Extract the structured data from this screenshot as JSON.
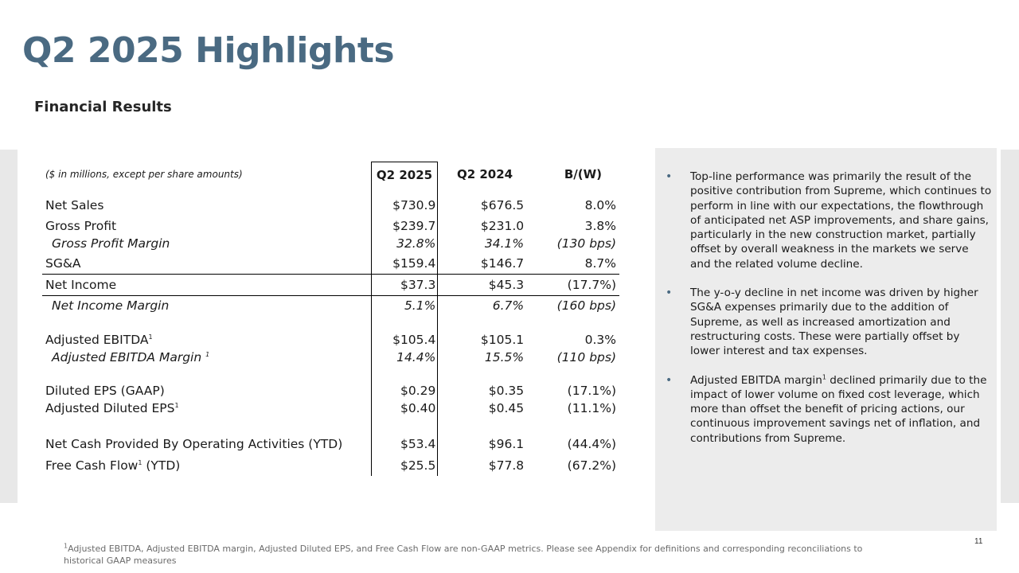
{
  "header": {
    "title": "Q2 2025 Highlights",
    "subtitle": "Financial Results"
  },
  "table": {
    "units_note": "($ in millions, except per share amounts)",
    "columns": [
      "Q2 2025",
      "Q2 2024",
      "B/(W)"
    ],
    "rows": [
      {
        "label": "Net Sales",
        "q2_2025": "$730.9",
        "q2_2024": "$676.5",
        "bw": "8.0%"
      },
      {
        "label": "Gross Profit",
        "q2_2025": "$239.7",
        "q2_2024": "$231.0",
        "bw": "3.8%"
      },
      {
        "label": "Gross Profit Margin",
        "q2_2025": "32.8%",
        "q2_2024": "34.1%",
        "bw": "(130 bps)"
      },
      {
        "label": "SG&A",
        "q2_2025": "$159.4",
        "q2_2024": "$146.7",
        "bw": "8.7%"
      },
      {
        "label": "Net Income",
        "q2_2025": "$37.3",
        "q2_2024": "$45.3",
        "bw": "(17.7%)"
      },
      {
        "label": "Net Income Margin",
        "q2_2025": "5.1%",
        "q2_2024": "6.7%",
        "bw": "(160 bps)"
      },
      {
        "label": "Adjusted EBITDA",
        "q2_2025": "$105.4",
        "q2_2024": "$105.1",
        "bw": "0.3%"
      },
      {
        "label": "Adjusted EBITDA Margin",
        "q2_2025": "14.4%",
        "q2_2024": "15.5%",
        "bw": "(110 bps)"
      },
      {
        "label": "Diluted EPS (GAAP)",
        "q2_2025": "$0.29",
        "q2_2024": "$0.35",
        "bw": "(17.1%)"
      },
      {
        "label": "Adjusted Diluted EPS",
        "q2_2025": "$0.40",
        "q2_2024": "$0.45",
        "bw": "(11.1%)"
      },
      {
        "label": "Net Cash Provided By Operating Activities (YTD)",
        "q2_2025": "$53.4",
        "q2_2024": "$96.1",
        "bw": "(44.4%)"
      },
      {
        "label": "Free Cash Flow",
        "label_suffix": " (YTD)",
        "q2_2025": "$25.5",
        "q2_2024": "$77.8",
        "bw": "(67.2%)"
      }
    ],
    "footnote_marker": "1"
  },
  "bullets": [
    "Top-line performance was primarily the result of the positive contribution from Supreme, which continues to perform in line with our expectations, the flowthrough of anticipated net ASP improvements, and share gains, particularly in the new construction market, partially offset by overall weakness in the markets we serve and the related volume decline.",
    "The y-o-y decline in net income was driven by higher SG&A expenses primarily due to the addition of Supreme, as well as increased amortization and restructuring costs. These were partially offset by lower interest and tax expenses.",
    {
      "before": "Adjusted EBITDA margin",
      "after": " declined primarily due to the impact of lower volume on fixed cost leverage, which more than offset the benefit of pricing actions, our continuous improvement savings net of inflation, and contributions from Supreme."
    }
  ],
  "bullet_glyph": "•",
  "footnote": "Adjusted EBITDA, Adjusted EBITDA margin, Adjusted Diluted EPS, and Free Cash Flow are non-GAAP metrics. Please see Appendix for definitions and corresponding reconciliations to historical GAAP measures",
  "page_number": "11",
  "colors": {
    "title": "#4a6a82",
    "panel": "#ececec",
    "band": "#e8e8e8"
  }
}
